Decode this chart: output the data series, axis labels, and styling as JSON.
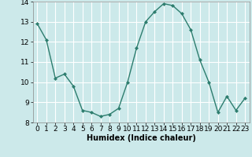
{
  "x": [
    0,
    1,
    2,
    3,
    4,
    5,
    6,
    7,
    8,
    9,
    10,
    11,
    12,
    13,
    14,
    15,
    16,
    17,
    18,
    19,
    20,
    21,
    22,
    23
  ],
  "y": [
    12.9,
    12.1,
    10.2,
    10.4,
    9.8,
    8.6,
    8.5,
    8.3,
    8.4,
    8.7,
    10.0,
    11.7,
    13.0,
    13.5,
    13.9,
    13.8,
    13.4,
    12.6,
    11.1,
    10.0,
    8.5,
    9.3,
    8.6,
    9.2
  ],
  "line_color": "#2d7d6e",
  "marker": "D",
  "marker_size": 2,
  "line_width": 1.0,
  "xlabel": "Humidex (Indice chaleur)",
  "xlabel_fontsize": 7,
  "xlim": [
    -0.5,
    23.5
  ],
  "ylim": [
    8.0,
    14.0
  ],
  "yticks": [
    8,
    9,
    10,
    11,
    12,
    13,
    14
  ],
  "xticks": [
    0,
    1,
    2,
    3,
    4,
    5,
    6,
    7,
    8,
    9,
    10,
    11,
    12,
    13,
    14,
    15,
    16,
    17,
    18,
    19,
    20,
    21,
    22,
    23
  ],
  "bg_color": "#cce9ea",
  "grid_color": "#ffffff",
  "tick_fontsize": 6.5
}
